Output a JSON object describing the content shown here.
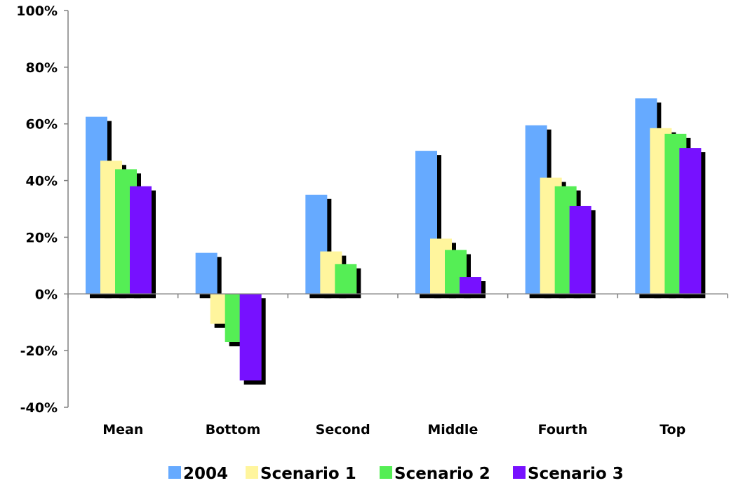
{
  "chart_data": {
    "type": "bar",
    "categories": [
      "Mean",
      "Bottom",
      "Second",
      "Middle",
      "Fourth",
      "Top"
    ],
    "series": [
      {
        "name": "2004",
        "color": "#66AAFF",
        "values": [
          62.5,
          14.5,
          35,
          50.5,
          59.5,
          69
        ]
      },
      {
        "name": "Scenario 1",
        "color": "#FFF59D",
        "values": [
          47,
          -10.5,
          15,
          19.5,
          41,
          58.5
        ]
      },
      {
        "name": "Scenario 2",
        "color": "#55EE55",
        "values": [
          44,
          -17,
          10.5,
          15.5,
          38,
          56.5
        ]
      },
      {
        "name": "Scenario 3",
        "color": "#7711FF",
        "values": [
          38,
          -30.5,
          0,
          6,
          31,
          51.5
        ]
      }
    ],
    "ylim": [
      -40,
      100
    ],
    "yticks": [
      -40,
      -20,
      0,
      20,
      40,
      60,
      80,
      100
    ],
    "ytick_labels": [
      "-40%",
      "-20%",
      "0%",
      "20%",
      "40%",
      "60%",
      "80%",
      "100%"
    ],
    "grid": false,
    "legend_position": "bottom"
  }
}
